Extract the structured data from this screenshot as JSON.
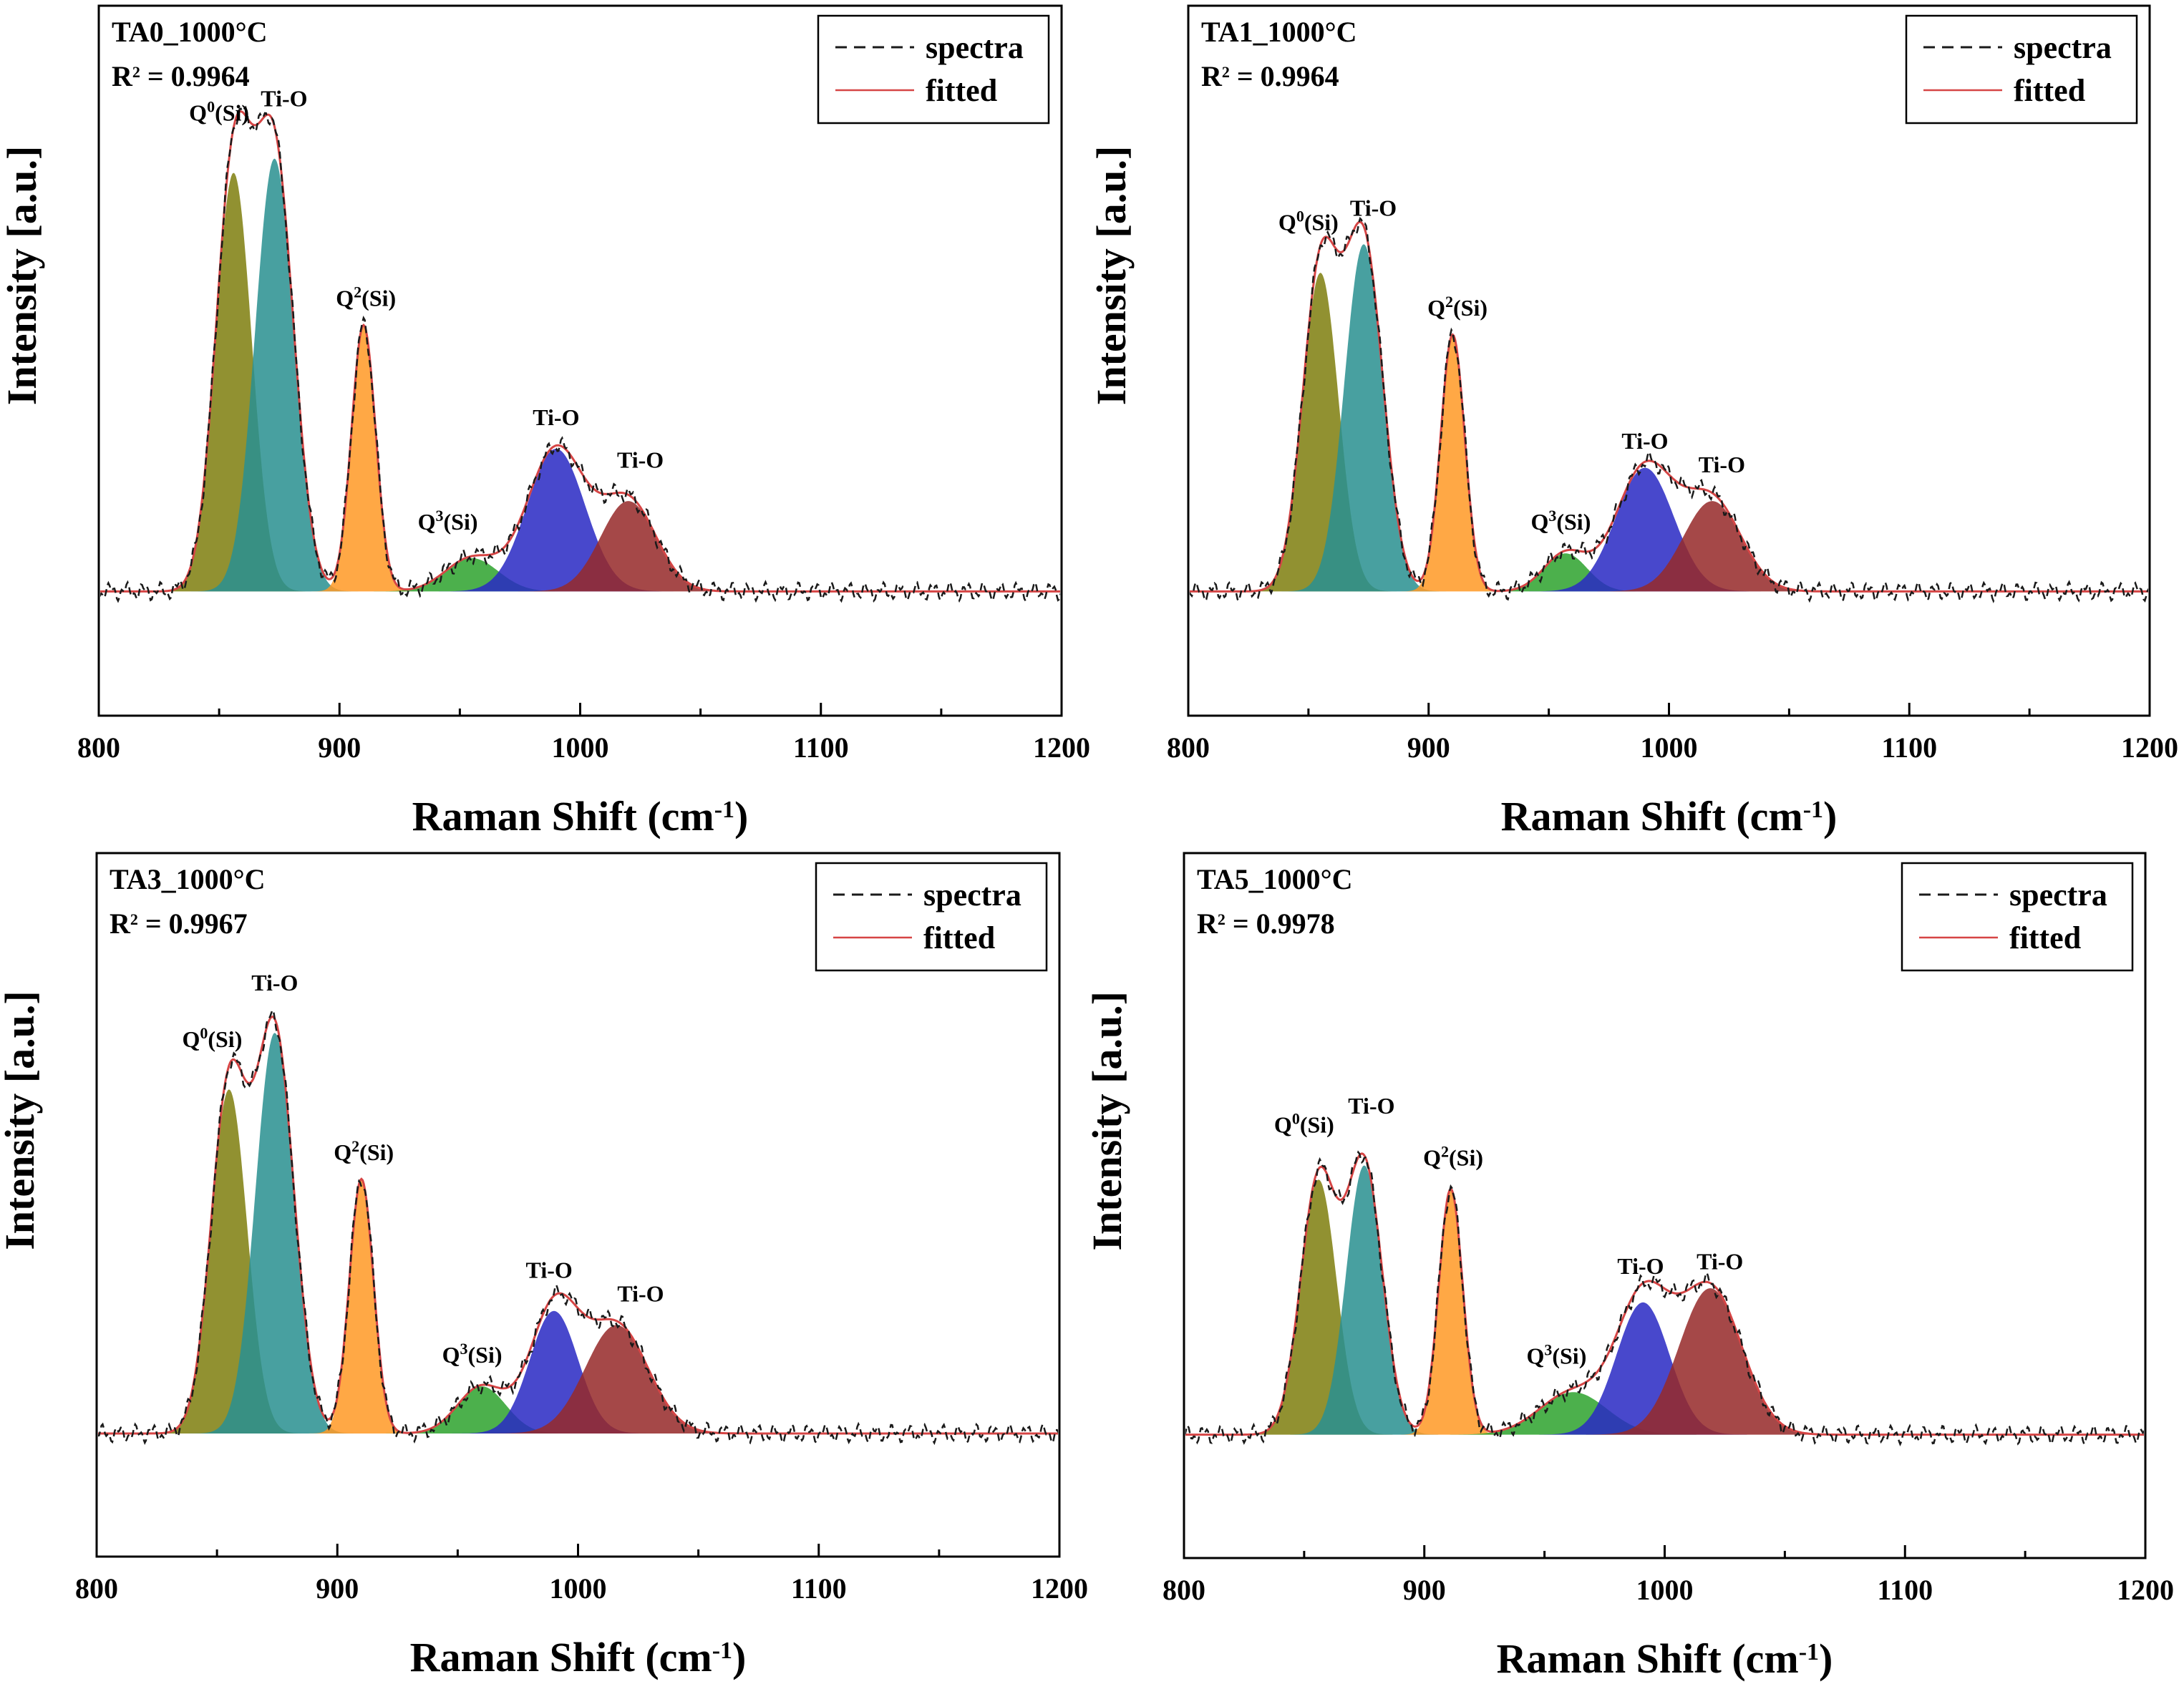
{
  "chart_data": [
    {
      "type": "line",
      "title": "TA0_1000°C",
      "r2_label": "R",
      "r2_value": " = 0.9964",
      "xlabel_main": "Raman Shift (cm",
      "xlabel_sup": "-1",
      "xlabel_close": ")",
      "ylabel": "Intensity [a.u.]",
      "xlim": [
        800,
        1200
      ],
      "xticks": [
        "800",
        "900",
        "1000",
        "1100",
        "1200"
      ],
      "legend": {
        "position": "top-right",
        "entries": [
          {
            "label": "spectra",
            "style": "dashed",
            "color": "#1a1a1a"
          },
          {
            "label": "fitted",
            "style": "solid",
            "color": "#d64545"
          }
        ]
      },
      "peaks": [
        {
          "center": 856,
          "height": 0.88,
          "width": 7.5,
          "color": "#7f7f0f"
        },
        {
          "center": 873,
          "height": 0.91,
          "width": 8.0,
          "color": "#2a9090"
        },
        {
          "center": 910,
          "height": 0.56,
          "width": 5.0,
          "color": "#ff9a26"
        },
        {
          "center": 955,
          "height": 0.07,
          "width": 11.0,
          "color": "#2ea32e"
        },
        {
          "center": 990,
          "height": 0.3,
          "width": 12.0,
          "color": "#2a2ac4"
        },
        {
          "center": 1020,
          "height": 0.19,
          "width": 11.5,
          "color": "#962a2a"
        }
      ],
      "annotations": [
        {
          "base": "Q",
          "sup": "0",
          "suffix": "(Si)",
          "x": 850,
          "y": 0.99
        },
        {
          "base": "Ti-O",
          "sup": "",
          "suffix": "",
          "x": 877,
          "y": 1.02
        },
        {
          "base": "Q",
          "sup": "2",
          "suffix": "(Si)",
          "x": 911,
          "y": 0.6
        },
        {
          "base": "Q",
          "sup": "3",
          "suffix": "(Si)",
          "x": 945,
          "y": 0.13
        },
        {
          "base": "Ti-O",
          "sup": "",
          "suffix": "",
          "x": 990,
          "y": 0.35
        },
        {
          "base": "Ti-O",
          "sup": "",
          "suffix": "",
          "x": 1025,
          "y": 0.26
        }
      ]
    },
    {
      "type": "line",
      "title": "TA1_1000°C",
      "r2_label": "R",
      "r2_value": " = 0.9964",
      "xlabel_main": "Raman Shift (cm",
      "xlabel_sup": "-1",
      "xlabel_close": ")",
      "ylabel": "Intensity [a.u.]",
      "xlim": [
        800,
        1200
      ],
      "xticks": [
        "800",
        "900",
        "1000",
        "1100",
        "1200"
      ],
      "legend": {
        "position": "top-right",
        "entries": [
          {
            "label": "spectra",
            "style": "dashed",
            "color": "#1a1a1a"
          },
          {
            "label": "fitted",
            "style": "solid",
            "color": "#d64545"
          }
        ]
      },
      "peaks": [
        {
          "center": 855,
          "height": 0.67,
          "width": 7.5,
          "color": "#7f7f0f"
        },
        {
          "center": 873,
          "height": 0.73,
          "width": 8.0,
          "color": "#2a9090"
        },
        {
          "center": 910,
          "height": 0.54,
          "width": 5.0,
          "color": "#ff9a26"
        },
        {
          "center": 957,
          "height": 0.08,
          "width": 9.0,
          "color": "#2ea32e"
        },
        {
          "center": 990,
          "height": 0.26,
          "width": 12.0,
          "color": "#2a2ac4"
        },
        {
          "center": 1018,
          "height": 0.19,
          "width": 12.0,
          "color": "#962a2a"
        }
      ],
      "annotations": [
        {
          "base": "Q",
          "sup": "0",
          "suffix": "(Si)",
          "x": 850,
          "y": 0.76
        },
        {
          "base": "Ti-O",
          "sup": "",
          "suffix": "",
          "x": 877,
          "y": 0.79
        },
        {
          "base": "Q",
          "sup": "2",
          "suffix": "(Si)",
          "x": 912,
          "y": 0.58
        },
        {
          "base": "Q",
          "sup": "3",
          "suffix": "(Si)",
          "x": 955,
          "y": 0.13
        },
        {
          "base": "Ti-O",
          "sup": "",
          "suffix": "",
          "x": 990,
          "y": 0.3
        },
        {
          "base": "Ti-O",
          "sup": "",
          "suffix": "",
          "x": 1022,
          "y": 0.25
        }
      ]
    },
    {
      "type": "line",
      "title": "TA3_1000°C",
      "r2_label": "R",
      "r2_value": " = 0.9967",
      "xlabel_main": "Raman Shift (cm",
      "xlabel_sup": "-1",
      "xlabel_close": ")",
      "ylabel": "Intensity [a.u.]",
      "xlim": [
        800,
        1200
      ],
      "xticks": [
        "800",
        "900",
        "1000",
        "1100",
        "1200"
      ],
      "legend": {
        "position": "top-right",
        "entries": [
          {
            "label": "spectra",
            "style": "dashed",
            "color": "#1a1a1a"
          },
          {
            "label": "fitted",
            "style": "solid",
            "color": "#d64545"
          }
        ]
      },
      "peaks": [
        {
          "center": 855,
          "height": 0.73,
          "width": 7.5,
          "color": "#7f7f0f"
        },
        {
          "center": 874,
          "height": 0.85,
          "width": 8.0,
          "color": "#2a9090"
        },
        {
          "center": 910,
          "height": 0.54,
          "width": 5.0,
          "color": "#ff9a26"
        },
        {
          "center": 960,
          "height": 0.1,
          "width": 10.0,
          "color": "#2ea32e"
        },
        {
          "center": 990,
          "height": 0.26,
          "width": 10.0,
          "color": "#2a2ac4"
        },
        {
          "center": 1016,
          "height": 0.23,
          "width": 13.0,
          "color": "#962a2a"
        }
      ],
      "annotations": [
        {
          "base": "Q",
          "sup": "0",
          "suffix": "(Si)",
          "x": 848,
          "y": 0.82
        },
        {
          "base": "Ti-O",
          "sup": "",
          "suffix": "",
          "x": 874,
          "y": 0.94
        },
        {
          "base": "Q",
          "sup": "2",
          "suffix": "(Si)",
          "x": 911,
          "y": 0.58
        },
        {
          "base": "Q",
          "sup": "3",
          "suffix": "(Si)",
          "x": 956,
          "y": 0.15
        },
        {
          "base": "Ti-O",
          "sup": "",
          "suffix": "",
          "x": 988,
          "y": 0.33
        },
        {
          "base": "Ti-O",
          "sup": "",
          "suffix": "",
          "x": 1026,
          "y": 0.28
        }
      ]
    },
    {
      "type": "line",
      "title": "TA5_1000°C",
      "r2_label": "R",
      "r2_value": " = 0.9978",
      "xlabel_main": "Raman Shift (cm",
      "xlabel_sup": "-1",
      "xlabel_close": ")",
      "ylabel": "Intensity [a.u.]",
      "xlim": [
        800,
        1200
      ],
      "xticks": [
        "800",
        "900",
        "1000",
        "1100",
        "1200"
      ],
      "legend": {
        "position": "top-right",
        "entries": [
          {
            "label": "spectra",
            "style": "dashed",
            "color": "#1a1a1a"
          },
          {
            "label": "fitted",
            "style": "solid",
            "color": "#d64545"
          }
        ]
      },
      "peaks": [
        {
          "center": 856,
          "height": 0.54,
          "width": 7.5,
          "color": "#7f7f0f"
        },
        {
          "center": 875,
          "height": 0.57,
          "width": 7.5,
          "color": "#2a9090"
        },
        {
          "center": 911,
          "height": 0.52,
          "width": 5.0,
          "color": "#ff9a26"
        },
        {
          "center": 962,
          "height": 0.09,
          "width": 14.0,
          "color": "#2ea32e"
        },
        {
          "center": 991,
          "height": 0.28,
          "width": 11.0,
          "color": "#2a2ac4"
        },
        {
          "center": 1019,
          "height": 0.31,
          "width": 13.0,
          "color": "#962a2a"
        }
      ],
      "annotations": [
        {
          "base": "Q",
          "sup": "0",
          "suffix": "(Si)",
          "x": 850,
          "y": 0.64
        },
        {
          "base": "Ti-O",
          "sup": "",
          "suffix": "",
          "x": 878,
          "y": 0.68
        },
        {
          "base": "Q",
          "sup": "2",
          "suffix": "(Si)",
          "x": 912,
          "y": 0.57
        },
        {
          "base": "Q",
          "sup": "3",
          "suffix": "(Si)",
          "x": 955,
          "y": 0.15
        },
        {
          "base": "Ti-O",
          "sup": "",
          "suffix": "",
          "x": 990,
          "y": 0.34
        },
        {
          "base": "Ti-O",
          "sup": "",
          "suffix": "",
          "x": 1023,
          "y": 0.35
        }
      ]
    }
  ]
}
